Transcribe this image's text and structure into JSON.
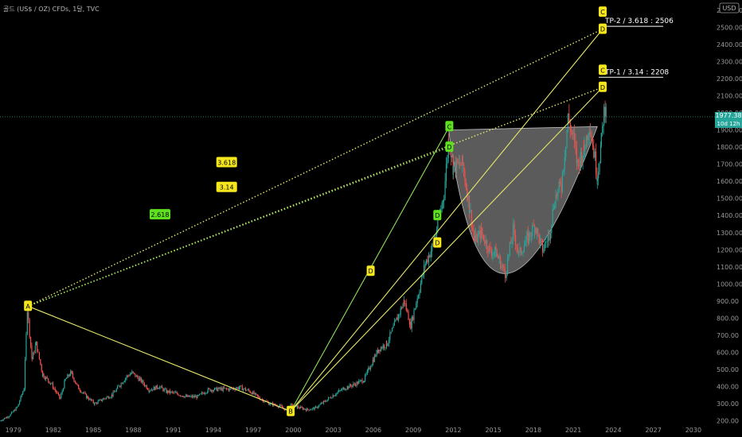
{
  "header": {
    "symbol_text": "골드 (US$ / OZ) CFDs, 1달, TVC",
    "currency": "USD"
  },
  "price_tag": {
    "price": "1977.38",
    "countdown": "10d 12h",
    "value": 1977.38
  },
  "chart_data": {
    "type": "line",
    "x_ticks": [
      "1979",
      "1982",
      "1985",
      "1988",
      "1991",
      "1994",
      "1997",
      "2000",
      "2003",
      "2006",
      "2009",
      "2012",
      "2015",
      "2018",
      "2021",
      "2024",
      "2027",
      "2030"
    ],
    "y_ticks": [
      200,
      300,
      400,
      500,
      600,
      700,
      800,
      900,
      1000,
      1100,
      1200,
      1300,
      1400,
      1500,
      1600,
      1700,
      1800,
      1900,
      2000,
      2100,
      2200,
      2300,
      2400,
      2500,
      2600
    ],
    "y_range": [
      170,
      2660
    ],
    "x_range": [
      1978.0,
      2031.5
    ],
    "price_series": [
      [
        1978.0,
        200
      ],
      [
        1978.7,
        230
      ],
      [
        1979.3,
        280
      ],
      [
        1979.8,
        390
      ],
      [
        1980.05,
        850
      ],
      [
        1980.4,
        560
      ],
      [
        1980.7,
        650
      ],
      [
        1981.2,
        470
      ],
      [
        1981.8,
        420
      ],
      [
        1982.5,
        330
      ],
      [
        1982.9,
        440
      ],
      [
        1983.3,
        480
      ],
      [
        1983.9,
        390
      ],
      [
        1984.5,
        340
      ],
      [
        1985.1,
        300
      ],
      [
        1985.8,
        330
      ],
      [
        1986.4,
        350
      ],
      [
        1987.0,
        410
      ],
      [
        1987.5,
        460
      ],
      [
        1987.9,
        480
      ],
      [
        1988.5,
        440
      ],
      [
        1989.2,
        380
      ],
      [
        1989.9,
        400
      ],
      [
        1990.5,
        370
      ],
      [
        1991.2,
        360
      ],
      [
        1992.0,
        340
      ],
      [
        1992.8,
        340
      ],
      [
        1993.6,
        380
      ],
      [
        1994.4,
        385
      ],
      [
        1995.2,
        385
      ],
      [
        1996.0,
        395
      ],
      [
        1996.8,
        370
      ],
      [
        1997.5,
        330
      ],
      [
        1998.2,
        300
      ],
      [
        1999.0,
        285
      ],
      [
        1999.6,
        255
      ],
      [
        1999.8,
        290
      ],
      [
        2000.3,
        280
      ],
      [
        2001.0,
        265
      ],
      [
        2001.6,
        272
      ],
      [
        2002.3,
        310
      ],
      [
        2003.0,
        350
      ],
      [
        2003.8,
        390
      ],
      [
        2004.5,
        410
      ],
      [
        2005.3,
        440
      ],
      [
        2006.0,
        560
      ],
      [
        2006.4,
        620
      ],
      [
        2007.0,
        650
      ],
      [
        2007.8,
        800
      ],
      [
        2008.3,
        900
      ],
      [
        2008.8,
        760
      ],
      [
        2009.3,
        920
      ],
      [
        2009.9,
        1120
      ],
      [
        2010.5,
        1230
      ],
      [
        2010.9,
        1380
      ],
      [
        2011.3,
        1530
      ],
      [
        2011.65,
        1850
      ],
      [
        2012.0,
        1680
      ],
      [
        2012.7,
        1700
      ],
      [
        2013.2,
        1450
      ],
      [
        2013.6,
        1250
      ],
      [
        2014.1,
        1300
      ],
      [
        2014.7,
        1200
      ],
      [
        2015.2,
        1180
      ],
      [
        2015.9,
        1060
      ],
      [
        2016.5,
        1320
      ],
      [
        2016.9,
        1170
      ],
      [
        2017.6,
        1270
      ],
      [
        2018.1,
        1340
      ],
      [
        2018.7,
        1200
      ],
      [
        2019.2,
        1290
      ],
      [
        2019.6,
        1500
      ],
      [
        2020.1,
        1580
      ],
      [
        2020.6,
        1970
      ],
      [
        2021.0,
        1850
      ],
      [
        2021.3,
        1700
      ],
      [
        2021.8,
        1790
      ],
      [
        2022.2,
        1940
      ],
      [
        2022.8,
        1640
      ],
      [
        2023.1,
        1830
      ],
      [
        2023.3,
        2000
      ],
      [
        2023.45,
        2070
      ],
      [
        2023.5,
        1977
      ]
    ],
    "cup": {
      "rim_left": [
        2011.65,
        1900
      ],
      "rim_right": [
        2022.8,
        1920
      ],
      "bottom": [
        2015.9,
        1060
      ]
    },
    "points": [
      {
        "name": "A",
        "x": 1980.1,
        "y": 870
      },
      {
        "name": "B",
        "x": 1999.8,
        "y": 255
      },
      {
        "name": "C",
        "x": 2011.7,
        "y": 1920
      },
      {
        "name": "D",
        "x": 2011.7,
        "y": 1800
      },
      {
        "name": "D",
        "x": 2010.8,
        "y": 1400
      },
      {
        "name": "D",
        "x": 2010.8,
        "y": 1240
      },
      {
        "name": "D",
        "x": 2005.8,
        "y": 1075
      },
      {
        "name": "C",
        "x": 2023.2,
        "y": 2590
      },
      {
        "name": "D",
        "x": 2023.2,
        "y": 2490
      },
      {
        "name": "C",
        "x": 2023.2,
        "y": 2250
      },
      {
        "name": "D",
        "x": 2023.2,
        "y": 2150
      }
    ],
    "lines": [
      {
        "from": [
          1980.1,
          870
        ],
        "to": [
          1999.8,
          255
        ],
        "color": "#e6e86a",
        "style": "solid"
      },
      {
        "from": [
          1999.8,
          255
        ],
        "to": [
          2011.7,
          1920
        ],
        "color": "#8de05a",
        "style": "solid"
      },
      {
        "from": [
          1999.8,
          255
        ],
        "to": [
          2023.2,
          2490
        ],
        "color": "#e6e86a",
        "style": "solid"
      },
      {
        "from": [
          1999.8,
          255
        ],
        "to": [
          2023.2,
          2150
        ],
        "color": "#e6e86a",
        "style": "solid"
      },
      {
        "from": [
          1980.1,
          870
        ],
        "to": [
          2023.2,
          2490
        ],
        "color": "#e6e86a",
        "style": "dotted"
      },
      {
        "from": [
          1980.1,
          870
        ],
        "to": [
          2023.2,
          2150
        ],
        "color": "#e6e86a",
        "style": "dotted"
      },
      {
        "from": [
          1980.1,
          870
        ],
        "to": [
          2011.7,
          1800
        ],
        "color": "#8de05a",
        "style": "dotted"
      }
    ],
    "ratio_labels": [
      {
        "text": "3.618",
        "x": 1995.0,
        "y": 1710,
        "color": "#f5e61e"
      },
      {
        "text": "3.14",
        "x": 1995.0,
        "y": 1565,
        "color": "#f5e61e"
      },
      {
        "text": "2.618",
        "x": 1990.0,
        "y": 1405,
        "color": "#5ee01e"
      }
    ],
    "targets": [
      {
        "text": "TP-2 / 3.618 : 2506",
        "value": 2506,
        "x_start": 2022.9,
        "x_end": 2031.5
      },
      {
        "text": "TP-1 / 3.14 : 2208",
        "value": 2208,
        "x_start": 2022.9,
        "x_end": 2031.5
      }
    ],
    "colors": {
      "up": "#26a69a",
      "down": "#ef5350",
      "yellow": "#e6e86a",
      "green": "#8de05a",
      "price_line": "#2a7d73",
      "label_bg_yellow": "#f5e61e",
      "label_bg_green": "#5ee01e",
      "cup_fill": "#7a7a7a"
    }
  }
}
